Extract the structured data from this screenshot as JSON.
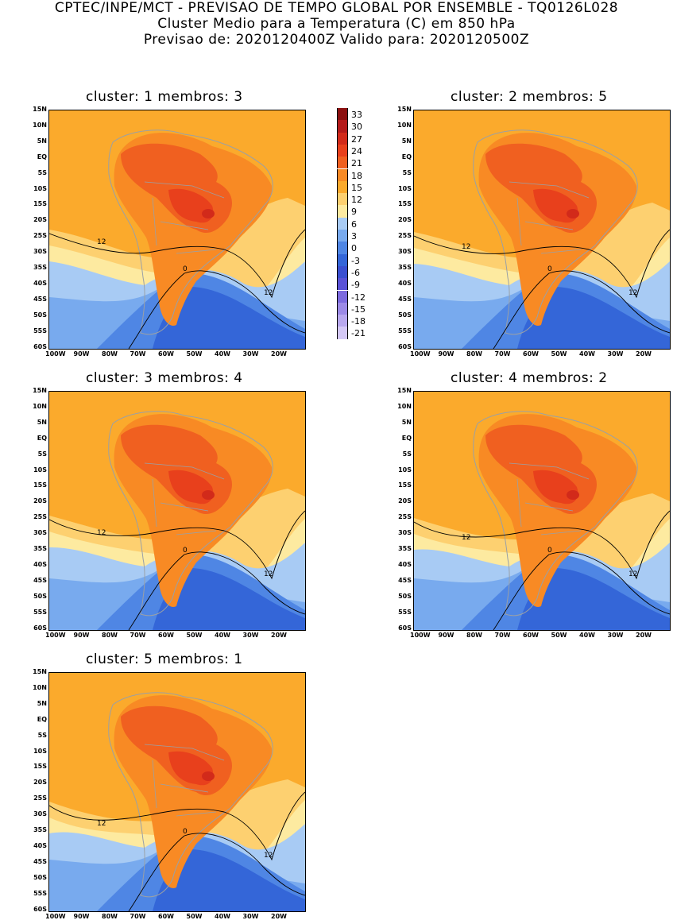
{
  "header": {
    "line1": "CPTEC/INPE/MCT - PREVISAO DE TEMPO GLOBAL POR ENSEMBLE - TQ0126L028",
    "line2": "Cluster Medio para a Temperatura (C) em 850 hPa",
    "line3": "Previsao de: 2020120400Z   Valido para: 2020120500Z"
  },
  "y_ticks": [
    "15N",
    "10N",
    "5N",
    "EQ",
    "5S",
    "10S",
    "15S",
    "20S",
    "25S",
    "30S",
    "35S",
    "40S",
    "45S",
    "50S",
    "55S",
    "60S"
  ],
  "x_ticks": [
    "100W",
    "90W",
    "80W",
    "70W",
    "60W",
    "50W",
    "40W",
    "30W",
    "20W"
  ],
  "colorbar": {
    "labels": [
      "33",
      "30",
      "27",
      "24",
      "21",
      "18",
      "15",
      "12",
      "9",
      "6",
      "3",
      "0",
      "-3",
      "-6",
      "-9",
      "-12",
      "-15",
      "-18",
      "-21"
    ],
    "colors": [
      "#8b1010",
      "#b41a1a",
      "#d22a1a",
      "#e8401c",
      "#f06020",
      "#f88a24",
      "#fbaa2c",
      "#fdd070",
      "#fdeaa0",
      "#a8cbf4",
      "#78aaee",
      "#4f86e4",
      "#3466d8",
      "#3a4fd0",
      "#5a52d6",
      "#7c6ade",
      "#9c8ae6",
      "#b8a8ee",
      "#d4c8f6"
    ]
  },
  "contour_labels": {
    "twelve": "12",
    "zero": "0"
  },
  "panels": [
    {
      "title": "cluster: 1   membros: 3"
    },
    {
      "title": "cluster: 2   membros: 5"
    },
    {
      "title": "cluster: 3   membros: 4"
    },
    {
      "title": "cluster: 4   membros: 2"
    },
    {
      "title": "cluster: 5   membros: 1"
    }
  ]
}
